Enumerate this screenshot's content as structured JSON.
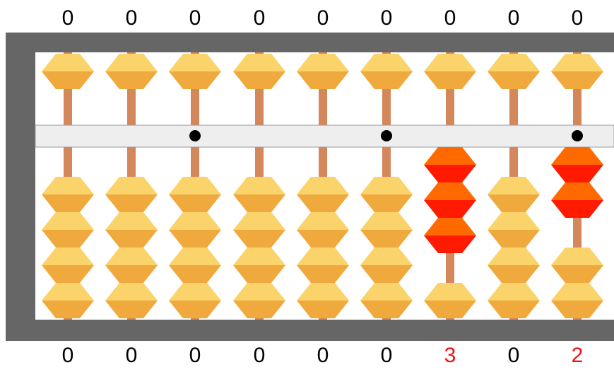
{
  "abacus": {
    "columns": [
      {
        "top_value": "0",
        "bottom_value": "0",
        "lower_beads_active": 0,
        "upper_bead_active": false,
        "unit_dot": false
      },
      {
        "top_value": "0",
        "bottom_value": "0",
        "lower_beads_active": 0,
        "upper_bead_active": false,
        "unit_dot": false
      },
      {
        "top_value": "0",
        "bottom_value": "0",
        "lower_beads_active": 0,
        "upper_bead_active": false,
        "unit_dot": true
      },
      {
        "top_value": "0",
        "bottom_value": "0",
        "lower_beads_active": 0,
        "upper_bead_active": false,
        "unit_dot": false
      },
      {
        "top_value": "0",
        "bottom_value": "0",
        "lower_beads_active": 0,
        "upper_bead_active": false,
        "unit_dot": false
      },
      {
        "top_value": "0",
        "bottom_value": "0",
        "lower_beads_active": 0,
        "upper_bead_active": false,
        "unit_dot": true
      },
      {
        "top_value": "0",
        "bottom_value": "3",
        "lower_beads_active": 3,
        "upper_bead_active": false,
        "unit_dot": false
      },
      {
        "top_value": "0",
        "bottom_value": "0",
        "lower_beads_active": 0,
        "upper_bead_active": false,
        "unit_dot": false
      },
      {
        "top_value": "0",
        "bottom_value": "2",
        "lower_beads_active": 2,
        "upper_bead_active": false,
        "unit_dot": true
      }
    ],
    "colors": {
      "frame": "#666666",
      "beam": "#eeeeee",
      "rod": "#d4875a",
      "bead_light": "#fbd36b",
      "bead_dark": "#efa93c",
      "active_bead_light": "#ff6a00",
      "active_bead_dark": "#ff1a00",
      "digit_normal": "#000000",
      "digit_active": "#ee1111",
      "dot": "#000000"
    }
  }
}
